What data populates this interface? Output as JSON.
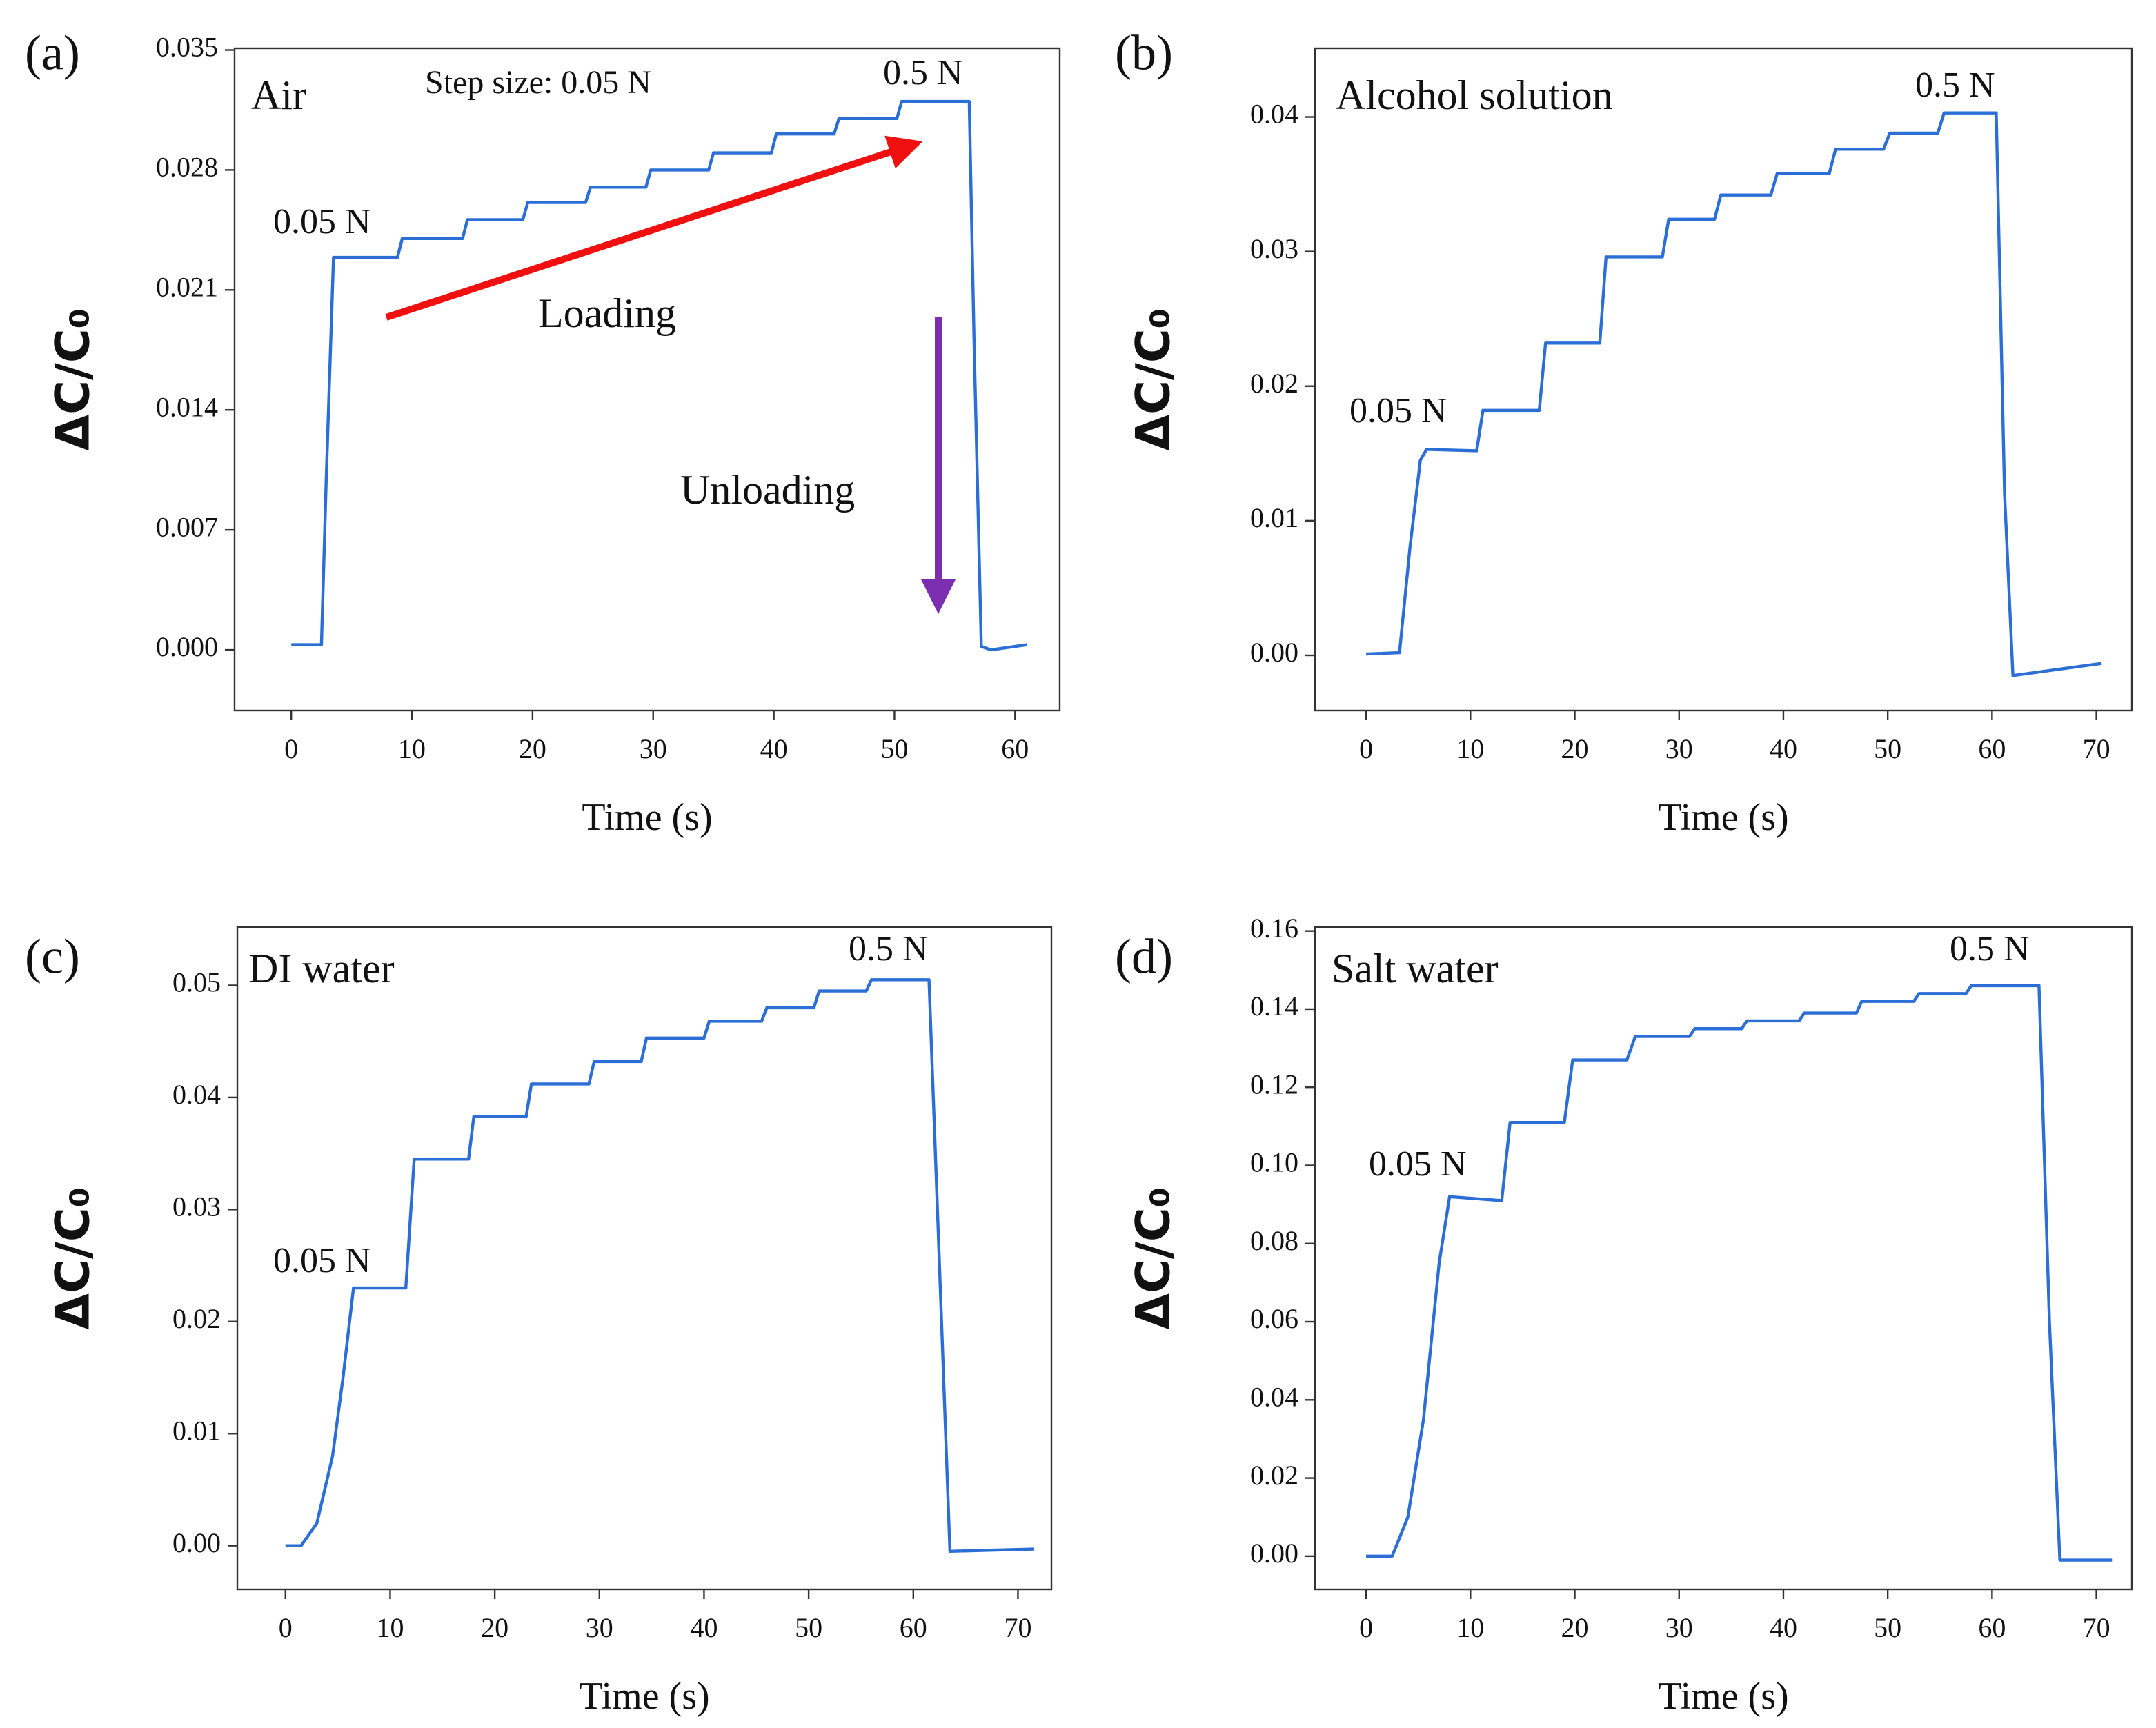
{
  "chart_data": [
    {
      "type": "line",
      "panel_label": "(a)",
      "annotations": [
        "Air",
        "Step size: 0.05 N",
        "0.05 N",
        "0.5 N",
        "Loading",
        "Unloading"
      ],
      "xlabel": "Time (s)",
      "ylabel": "ΔC/C₀",
      "x": [
        0,
        2.5,
        2.9,
        3.5,
        8.8,
        9.2,
        14.2,
        14.6,
        19.2,
        19.6,
        24.4,
        24.8,
        29.4,
        29.8,
        34.6,
        35,
        39.8,
        40.2,
        45,
        45.4,
        50.2,
        50.6,
        56.2,
        56.6,
        57.2,
        58,
        61
      ],
      "series": [
        {
          "color": "#2b6fd6",
          "values": [
            0.0003,
            0.0003,
            0.01,
            0.0229,
            0.0229,
            0.024,
            0.024,
            0.0251,
            0.0251,
            0.0261,
            0.0261,
            0.027,
            0.027,
            0.028,
            0.028,
            0.029,
            0.029,
            0.0301,
            0.0301,
            0.031,
            0.031,
            0.032,
            0.032,
            0.018,
            0.0002,
            0,
            0.0003
          ]
        }
      ],
      "xlim": [
        -4.7,
        63.7
      ],
      "xticks": [
        0,
        10,
        20,
        30,
        40,
        50,
        60
      ],
      "ylim": [
        -0.00354,
        0.0351
      ],
      "yticks": [
        {
          "value": 0,
          "label": "0.000"
        },
        0.007,
        0.014,
        0.021,
        0.028,
        0.035
      ]
    },
    {
      "type": "line",
      "panel_label": "(b)",
      "annotations": [
        "Alcohol solution",
        "0.05 N",
        "0.5 N"
      ],
      "xlabel": "Time (s)",
      "ylabel": "ΔC/C₀",
      "x": [
        0,
        3.2,
        4.2,
        5.2,
        5.8,
        10.6,
        11.2,
        16.6,
        17.2,
        22.4,
        23,
        28.4,
        29,
        33.4,
        34,
        38.8,
        39.4,
        44.4,
        45,
        49.6,
        50.2,
        54.8,
        55.4,
        60.4,
        61.2,
        62,
        70.5
      ],
      "series": [
        {
          "color": "#2b6fd6",
          "values": [
            0.0001,
            0.0002,
            0.008,
            0.0145,
            0.0153,
            0.0152,
            0.0182,
            0.0182,
            0.0232,
            0.0232,
            0.0296,
            0.0296,
            0.0324,
            0.0324,
            0.0342,
            0.0342,
            0.0358,
            0.0358,
            0.0376,
            0.0376,
            0.0388,
            0.0388,
            0.0403,
            0.0403,
            0.012,
            -0.0015,
            -0.0006
          ]
        }
      ],
      "xlim": [
        -4.9,
        73.4
      ],
      "xticks": [
        0,
        10,
        20,
        30,
        40,
        50,
        60,
        70
      ],
      "ylim": [
        -0.0041,
        0.0451
      ],
      "yticks": [
        {
          "value": 0,
          "label": "0.00"
        },
        0.01,
        0.02,
        0.03,
        0.04
      ]
    },
    {
      "type": "line",
      "panel_label": "(c)",
      "annotations": [
        "DI water",
        "0.05 N",
        "0.5 N"
      ],
      "xlabel": "Time (s)",
      "ylabel": "ΔC/C₀",
      "x": [
        0,
        1.5,
        3,
        4.5,
        5.5,
        6.5,
        11.5,
        12.3,
        17.5,
        18,
        23,
        23.5,
        29,
        29.5,
        34,
        34.5,
        40,
        40.5,
        45.5,
        46,
        50.5,
        51,
        55.5,
        56,
        61.5,
        62.5,
        63.5,
        71.5
      ],
      "series": [
        {
          "color": "#2b6fd6",
          "values": [
            0,
            0,
            0.002,
            0.008,
            0.015,
            0.023,
            0.023,
            0.0345,
            0.0345,
            0.0383,
            0.0383,
            0.0412,
            0.0412,
            0.0432,
            0.0432,
            0.0453,
            0.0453,
            0.0468,
            0.0468,
            0.048,
            0.048,
            0.0495,
            0.0495,
            0.0505,
            0.0505,
            0.025,
            -0.0005,
            -0.0003
          ]
        }
      ],
      "xlim": [
        -4.6,
        73.2
      ],
      "xticks": [
        0,
        10,
        20,
        30,
        40,
        50,
        60,
        70
      ],
      "ylim": [
        -0.0039,
        0.0552
      ],
      "yticks": [
        {
          "value": 0,
          "label": "0.00"
        },
        0.01,
        0.02,
        0.03,
        0.04,
        0.05
      ]
    },
    {
      "type": "line",
      "panel_label": "(d)",
      "annotations": [
        "Salt water",
        "0.05 N",
        "0.5 N"
      ],
      "xlabel": "Time (s)",
      "ylabel": "ΔC/C₀",
      "x": [
        0,
        2.5,
        4,
        5.5,
        7,
        8,
        13,
        13.8,
        19,
        19.8,
        25,
        25.8,
        31,
        31.5,
        36,
        36.5,
        41.5,
        42,
        47,
        47.5,
        52.5,
        53,
        57.5,
        58,
        64.5,
        65.5,
        66.5,
        71.5
      ],
      "series": [
        {
          "color": "#2b6fd6",
          "values": [
            0,
            0,
            0.01,
            0.035,
            0.075,
            0.092,
            0.091,
            0.111,
            0.111,
            0.127,
            0.127,
            0.133,
            0.133,
            0.135,
            0.135,
            0.137,
            0.137,
            0.139,
            0.139,
            0.142,
            0.142,
            0.144,
            0.144,
            0.146,
            0.146,
            0.06,
            -0.001,
            -0.001
          ]
        }
      ],
      "xlim": [
        -4.9,
        73.4
      ],
      "xticks": [
        0,
        10,
        20,
        30,
        40,
        50,
        60,
        70
      ],
      "ylim": [
        -0.0085,
        0.161
      ],
      "yticks": [
        {
          "value": 0,
          "label": "0.00"
        },
        0.02,
        0.04,
        0.06,
        0.08,
        {
          "value": 0.1,
          "label": "0.10"
        },
        0.12,
        0.14,
        0.16
      ]
    }
  ]
}
